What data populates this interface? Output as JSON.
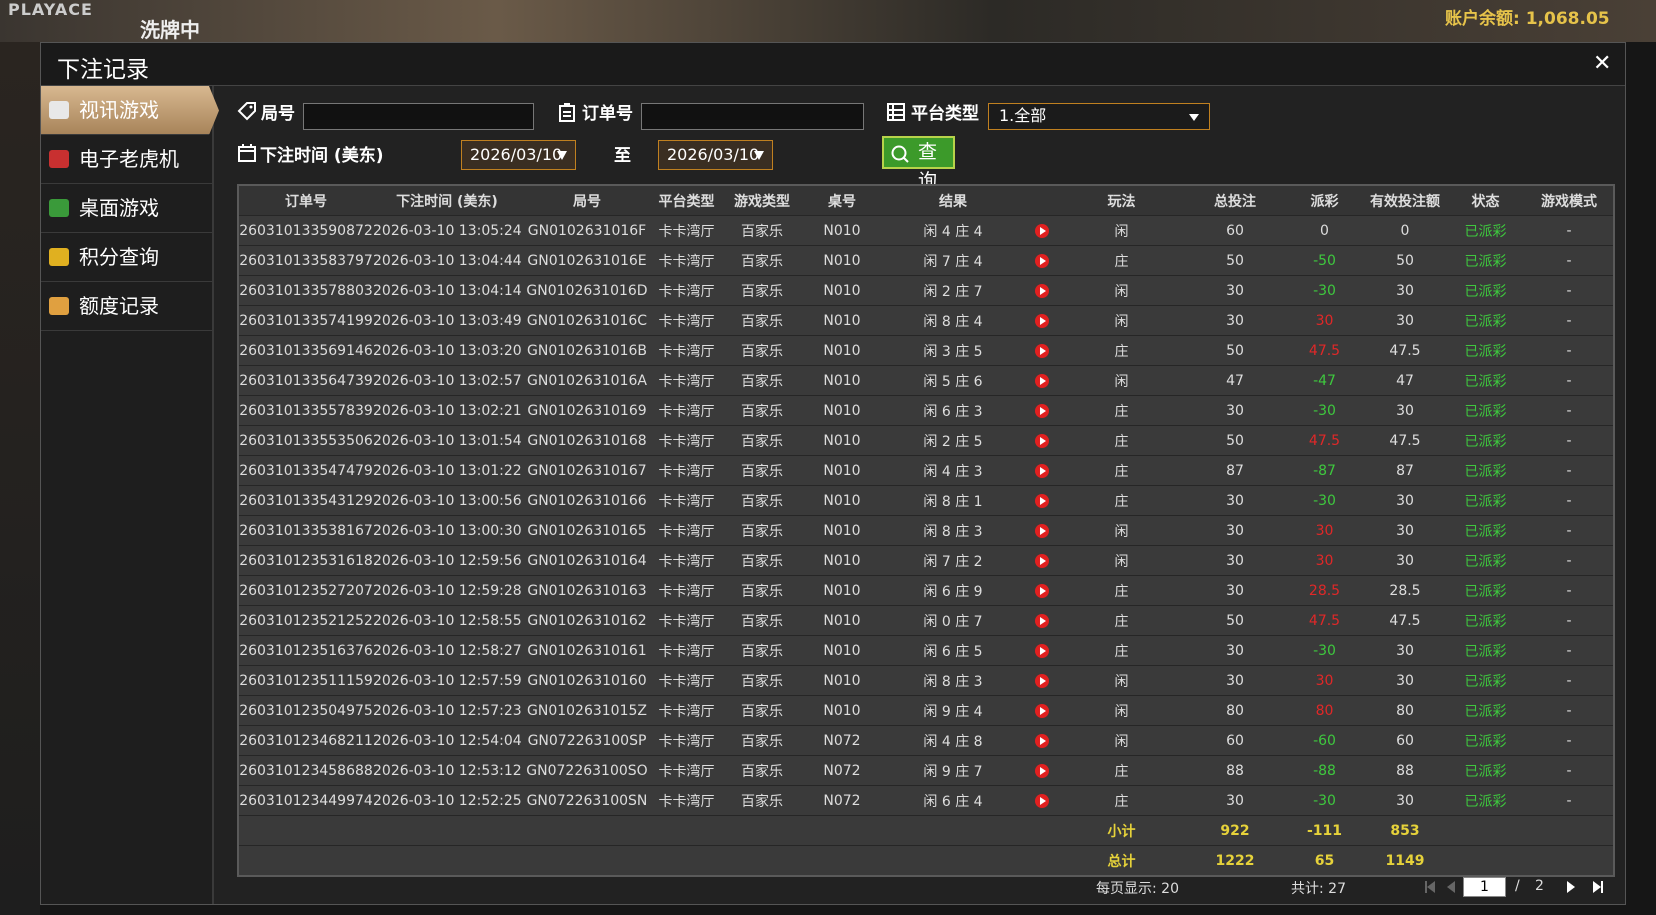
{
  "background": {
    "brand": "PLAYACE",
    "status": "洗牌中",
    "balance": "账户余额: 1,068.05"
  },
  "header": {
    "title": "下注记录"
  },
  "sidebar": [
    "视讯游戏",
    "电子老虎机",
    "桌面游戏",
    "积分查询",
    "额度记录"
  ],
  "filters": {
    "round_label": "局号",
    "order_label": "订单号",
    "platform_label": "平台类型",
    "platform_value": "1.全部",
    "time_label": "下注时间 (美东)",
    "date_from": "2026/03/10",
    "to_label": "至",
    "date_to": "2026/03/10",
    "search": "查询"
  },
  "table": {
    "columns": [
      "订单号",
      "下注时间 (美东)",
      "局号",
      "平台类型",
      "游戏类型",
      "桌号",
      "结果",
      "玩法",
      "总投注",
      "派彩",
      "有效投注额",
      "状态",
      "游戏模式"
    ],
    "rows": [
      [
        "260310133590872",
        "2026-03-10 13:05:24",
        "GN0102631016F",
        "卡卡湾厅",
        "百家乐",
        "N010",
        "闲 4 庄 4",
        "闲",
        60,
        0,
        0,
        "已派彩",
        "-"
      ],
      [
        "260310133583797",
        "2026-03-10 13:04:44",
        "GN0102631016E",
        "卡卡湾厅",
        "百家乐",
        "N010",
        "闲 7 庄 4",
        "庄",
        50,
        -50,
        50,
        "已派彩",
        "-"
      ],
      [
        "260310133578803",
        "2026-03-10 13:04:14",
        "GN0102631016D",
        "卡卡湾厅",
        "百家乐",
        "N010",
        "闲 2 庄 7",
        "闲",
        30,
        -30,
        30,
        "已派彩",
        "-"
      ],
      [
        "260310133574199",
        "2026-03-10 13:03:49",
        "GN0102631016C",
        "卡卡湾厅",
        "百家乐",
        "N010",
        "闲 8 庄 4",
        "闲",
        30,
        30,
        30,
        "已派彩",
        "-"
      ],
      [
        "260310133569146",
        "2026-03-10 13:03:20",
        "GN0102631016B",
        "卡卡湾厅",
        "百家乐",
        "N010",
        "闲 3 庄 5",
        "庄",
        50,
        47.5,
        47.5,
        "已派彩",
        "-"
      ],
      [
        "260310133564739",
        "2026-03-10 13:02:57",
        "GN0102631016A",
        "卡卡湾厅",
        "百家乐",
        "N010",
        "闲 5 庄 6",
        "闲",
        47,
        -47,
        47,
        "已派彩",
        "-"
      ],
      [
        "260310133557839",
        "2026-03-10 13:02:21",
        "GN01026310169",
        "卡卡湾厅",
        "百家乐",
        "N010",
        "闲 6 庄 3",
        "庄",
        30,
        -30,
        30,
        "已派彩",
        "-"
      ],
      [
        "260310133553506",
        "2026-03-10 13:01:54",
        "GN01026310168",
        "卡卡湾厅",
        "百家乐",
        "N010",
        "闲 2 庄 5",
        "庄",
        50,
        47.5,
        47.5,
        "已派彩",
        "-"
      ],
      [
        "260310133547479",
        "2026-03-10 13:01:22",
        "GN01026310167",
        "卡卡湾厅",
        "百家乐",
        "N010",
        "闲 4 庄 3",
        "庄",
        87,
        -87,
        87,
        "已派彩",
        "-"
      ],
      [
        "260310133543129",
        "2026-03-10 13:00:56",
        "GN01026310166",
        "卡卡湾厅",
        "百家乐",
        "N010",
        "闲 8 庄 1",
        "庄",
        30,
        -30,
        30,
        "已派彩",
        "-"
      ],
      [
        "260310133538167",
        "2026-03-10 13:00:30",
        "GN01026310165",
        "卡卡湾厅",
        "百家乐",
        "N010",
        "闲 8 庄 3",
        "闲",
        30,
        30,
        30,
        "已派彩",
        "-"
      ],
      [
        "260310123531618",
        "2026-03-10 12:59:56",
        "GN01026310164",
        "卡卡湾厅",
        "百家乐",
        "N010",
        "闲 7 庄 2",
        "闲",
        30,
        30,
        30,
        "已派彩",
        "-"
      ],
      [
        "260310123527207",
        "2026-03-10 12:59:28",
        "GN01026310163",
        "卡卡湾厅",
        "百家乐",
        "N010",
        "闲 6 庄 9",
        "庄",
        30,
        28.5,
        28.5,
        "已派彩",
        "-"
      ],
      [
        "260310123521252",
        "2026-03-10 12:58:55",
        "GN01026310162",
        "卡卡湾厅",
        "百家乐",
        "N010",
        "闲 0 庄 7",
        "庄",
        50,
        47.5,
        47.5,
        "已派彩",
        "-"
      ],
      [
        "260310123516376",
        "2026-03-10 12:58:27",
        "GN01026310161",
        "卡卡湾厅",
        "百家乐",
        "N010",
        "闲 6 庄 5",
        "庄",
        30,
        -30,
        30,
        "已派彩",
        "-"
      ],
      [
        "260310123511159",
        "2026-03-10 12:57:59",
        "GN01026310160",
        "卡卡湾厅",
        "百家乐",
        "N010",
        "闲 8 庄 3",
        "闲",
        30,
        30,
        30,
        "已派彩",
        "-"
      ],
      [
        "260310123504975",
        "2026-03-10 12:57:23",
        "GN0102631015Z",
        "卡卡湾厅",
        "百家乐",
        "N010",
        "闲 9 庄 4",
        "闲",
        80,
        80,
        80,
        "已派彩",
        "-"
      ],
      [
        "260310123468211",
        "2026-03-10 12:54:04",
        "GN072263100SP",
        "卡卡湾厅",
        "百家乐",
        "N072",
        "闲 4 庄 8",
        "闲",
        60,
        -60,
        60,
        "已派彩",
        "-"
      ],
      [
        "260310123458688",
        "2026-03-10 12:53:12",
        "GN072263100SO",
        "卡卡湾厅",
        "百家乐",
        "N072",
        "闲 9 庄 7",
        "庄",
        88,
        -88,
        88,
        "已派彩",
        "-"
      ],
      [
        "260310123449974",
        "2026-03-10 12:52:25",
        "GN072263100SN",
        "卡卡湾厅",
        "百家乐",
        "N072",
        "闲 6 庄 4",
        "庄",
        30,
        -30,
        30,
        "已派彩",
        "-"
      ]
    ],
    "subtotal": {
      "label": "小计",
      "total_bet": 922,
      "payout": -111,
      "valid_bet": 853
    },
    "total": {
      "label": "总计",
      "total_bet": 1222,
      "payout": 65,
      "valid_bet": 1149
    }
  },
  "pagination": {
    "per_page": "每页显示: 20",
    "count": "共计: 27",
    "page": 1,
    "separator": "/",
    "pages": 2
  }
}
